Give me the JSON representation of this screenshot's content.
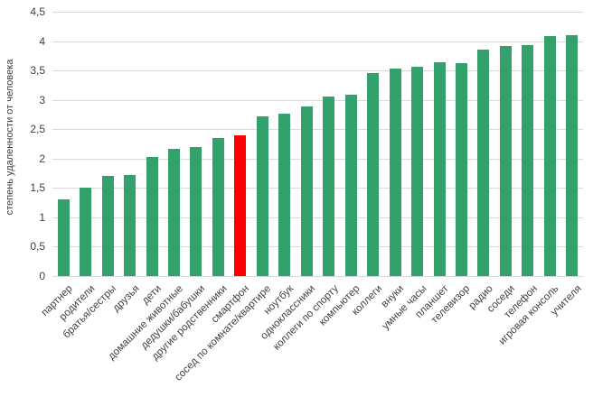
{
  "chart_data": {
    "type": "bar",
    "title": "",
    "xlabel": "",
    "ylabel": "степень удаленности от человека",
    "ylim": [
      0,
      4.5
    ],
    "yticks": [
      0,
      0.5,
      1,
      1.5,
      2,
      2.5,
      3,
      3.5,
      4,
      4.5
    ],
    "ytick_labels": [
      "0",
      "0,5",
      "1",
      "1,5",
      "2",
      "2,5",
      "3",
      "3,5",
      "4",
      "4,5"
    ],
    "grid": true,
    "legend": false,
    "categories": [
      "партнер",
      "родители",
      "братья/сестры",
      "друзья",
      "дети",
      "домашние животные",
      "дедушки/бабушки",
      "другие родственники",
      "смартфон",
      "сосед по комнате/квартире",
      "ноутбук",
      "одноклассники",
      "коллеги по спорту",
      "компьютер",
      "коллеги",
      "внуки",
      "умные часы",
      "планшет",
      "телевизор",
      "радио",
      "соседи",
      "телефон",
      "игровая консоль",
      "учителя"
    ],
    "values": [
      1.3,
      1.5,
      1.7,
      1.72,
      2.03,
      2.17,
      2.2,
      2.35,
      2.4,
      2.72,
      2.76,
      2.89,
      3.06,
      3.09,
      3.45,
      3.54,
      3.57,
      3.64,
      3.63,
      3.86,
      3.92,
      3.93,
      4.08,
      4.1
    ],
    "highlight_index": 8,
    "highlight_category": "смартфон",
    "colors": {
      "bar": "#34a06c",
      "highlight": "#ff0000",
      "gridline": "#d9d9d9",
      "text": "#404040",
      "background": "#ffffff"
    }
  }
}
